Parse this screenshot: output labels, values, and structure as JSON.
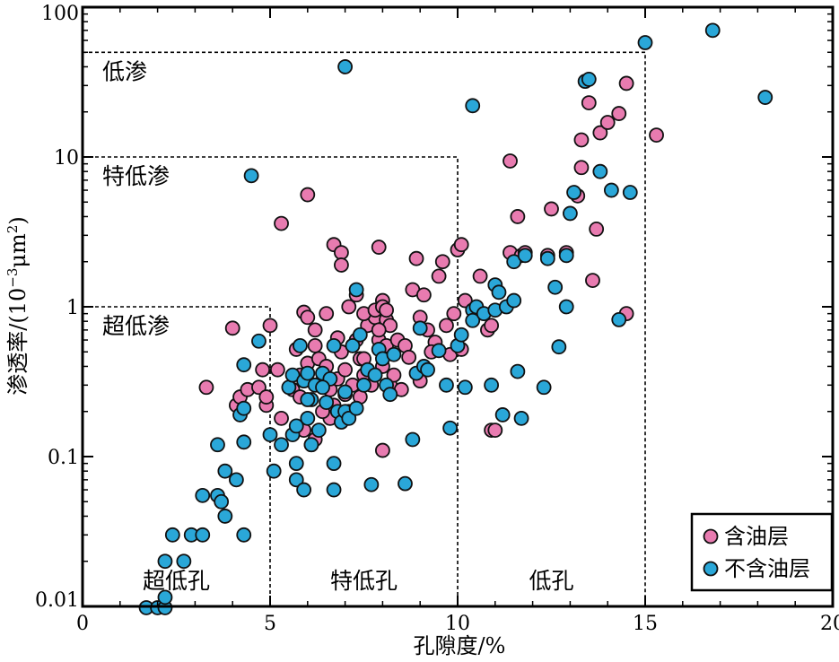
{
  "chart_data": {
    "type": "scatter",
    "title": "",
    "xlabel": "孔隙度/%",
    "ylabel_prefix": "渗透率/(10",
    "ylabel_exp1": "−3",
    "ylabel_mid": "μm",
    "ylabel_exp2": "2",
    "ylabel_suffix": ")",
    "xlim": [
      0,
      20
    ],
    "ylim": [
      0.01,
      100
    ],
    "yscale": "log",
    "xticks": [
      "0",
      "5",
      "10",
      "15",
      "20"
    ],
    "yticks": [
      "0.01",
      "0.1",
      "1",
      "10",
      "100"
    ],
    "grid": false,
    "legend_position": "bottom-right",
    "colors": {
      "oil": "#e87bb0",
      "nonoil": "#2aa7d8",
      "edge": "#111111"
    },
    "regions": {
      "perm": [
        {
          "label": "低渗",
          "x_max": 15,
          "y_max": 50
        },
        {
          "label": "特低渗",
          "x_max": 10,
          "y_max": 10
        },
        {
          "label": "超低渗",
          "x_max": 5,
          "y_max": 1
        }
      ],
      "poro": [
        {
          "label": "超低孔",
          "x_from": 0,
          "x_to": 5
        },
        {
          "label": "特低孔",
          "x_from": 5,
          "x_to": 10
        },
        {
          "label": "低孔",
          "x_from": 10,
          "x_to": 15
        }
      ]
    },
    "series": [
      {
        "name": "含油层",
        "points": [
          [
            3.3,
            0.29
          ],
          [
            4.0,
            0.72
          ],
          [
            4.1,
            0.22
          ],
          [
            4.2,
            0.25
          ],
          [
            4.4,
            0.28
          ],
          [
            4.9,
            0.22
          ],
          [
            4.8,
            0.38
          ],
          [
            4.7,
            0.29
          ],
          [
            5.0,
            0.75
          ],
          [
            4.9,
            0.25
          ],
          [
            5.2,
            0.38
          ],
          [
            5.3,
            0.18
          ],
          [
            5.6,
            0.28
          ],
          [
            5.7,
            0.52
          ],
          [
            5.8,
            0.35
          ],
          [
            5.9,
            0.15
          ],
          [
            6.0,
            0.42
          ],
          [
            6.1,
            0.12
          ],
          [
            6.2,
            0.13
          ],
          [
            6.2,
            0.55
          ],
          [
            6.3,
            0.45
          ],
          [
            6.4,
            0.32
          ],
          [
            6.5,
            0.4
          ],
          [
            6.6,
            0.28
          ],
          [
            6.7,
            0.22
          ],
          [
            6.8,
            0.33
          ],
          [
            6.9,
            0.5
          ],
          [
            7.0,
            0.26
          ],
          [
            7.1,
            0.2
          ],
          [
            7.2,
            0.55
          ],
          [
            7.3,
            0.6
          ],
          [
            7.4,
            0.45
          ],
          [
            7.5,
            0.35
          ],
          [
            7.6,
            0.75
          ],
          [
            7.7,
            0.3
          ],
          [
            7.8,
            0.85
          ],
          [
            7.9,
            0.6
          ],
          [
            8.0,
            0.4
          ],
          [
            8.1,
            0.55
          ],
          [
            8.2,
            0.3
          ],
          [
            5.3,
            3.6
          ],
          [
            5.9,
            0.92
          ],
          [
            6.0,
            5.6
          ],
          [
            6.0,
            0.85
          ],
          [
            6.2,
            0.7
          ],
          [
            6.5,
            0.9
          ],
          [
            6.7,
            2.6
          ],
          [
            6.9,
            2.3
          ],
          [
            6.9,
            1.9
          ],
          [
            7.1,
            1.0
          ],
          [
            7.3,
            1.2
          ],
          [
            7.5,
            0.9
          ],
          [
            7.8,
            0.95
          ],
          [
            7.9,
            2.5
          ],
          [
            8.0,
            1.1
          ],
          [
            8.0,
            1.0
          ],
          [
            8.1,
            0.82
          ],
          [
            8.2,
            0.75
          ],
          [
            8.1,
            0.95
          ],
          [
            8.4,
            0.6
          ],
          [
            8.6,
            0.55
          ],
          [
            8.7,
            0.46
          ],
          [
            8.8,
            1.3
          ],
          [
            8.9,
            2.1
          ],
          [
            9.0,
            0.85
          ],
          [
            9.1,
            1.2
          ],
          [
            9.2,
            0.7
          ],
          [
            9.4,
            0.58
          ],
          [
            9.5,
            1.6
          ],
          [
            9.6,
            2.0
          ],
          [
            9.7,
            0.75
          ],
          [
            9.8,
            0.48
          ],
          [
            9.9,
            0.9
          ],
          [
            10.0,
            2.4
          ],
          [
            10.1,
            2.6
          ],
          [
            10.1,
            0.52
          ],
          [
            10.2,
            1.1
          ],
          [
            10.6,
            1.6
          ],
          [
            10.8,
            0.7
          ],
          [
            10.9,
            0.75
          ],
          [
            10.9,
            0.15
          ],
          [
            11.0,
            0.15
          ],
          [
            11.4,
            9.4
          ],
          [
            11.4,
            2.3
          ],
          [
            11.6,
            4.0
          ],
          [
            11.7,
            2.2
          ],
          [
            11.8,
            2.3
          ],
          [
            12.4,
            2.2
          ],
          [
            12.5,
            4.5
          ],
          [
            12.9,
            2.3
          ],
          [
            13.2,
            5.5
          ],
          [
            13.3,
            8.5
          ],
          [
            13.3,
            13
          ],
          [
            13.5,
            23
          ],
          [
            13.6,
            1.5
          ],
          [
            13.7,
            3.3
          ],
          [
            13.8,
            14.5
          ],
          [
            14.0,
            17
          ],
          [
            14.3,
            19.5
          ],
          [
            14.5,
            0.9
          ],
          [
            14.5,
            31
          ],
          [
            15.3,
            14
          ],
          [
            6.3,
            0.3
          ],
          [
            6.8,
            0.62
          ],
          [
            7.4,
            0.25
          ],
          [
            7.0,
            0.38
          ],
          [
            7.9,
            0.7
          ],
          [
            8.3,
            0.35
          ],
          [
            6.6,
            0.18
          ],
          [
            7.2,
            0.3
          ],
          [
            9.0,
            0.32
          ],
          [
            9.3,
            0.5
          ],
          [
            8.5,
            0.28
          ],
          [
            6.4,
            0.2
          ],
          [
            5.8,
            0.25
          ],
          [
            8.0,
            0.11
          ],
          [
            7.5,
            0.45
          ]
        ]
      },
      {
        "name": "不含油层",
        "points": [
          [
            1.7,
            0.0098
          ],
          [
            2.0,
            0.0098
          ],
          [
            2.2,
            0.0098
          ],
          [
            2.2,
            0.0115
          ],
          [
            2.2,
            0.02
          ],
          [
            2.4,
            0.03
          ],
          [
            2.7,
            0.02
          ],
          [
            2.9,
            0.03
          ],
          [
            3.2,
            0.03
          ],
          [
            3.2,
            0.055
          ],
          [
            3.6,
            0.055
          ],
          [
            3.6,
            0.12
          ],
          [
            3.7,
            0.05
          ],
          [
            3.8,
            0.04
          ],
          [
            3.8,
            0.08
          ],
          [
            4.1,
            0.07
          ],
          [
            4.2,
            0.19
          ],
          [
            4.3,
            0.21
          ],
          [
            4.3,
            0.125
          ],
          [
            4.3,
            0.41
          ],
          [
            4.3,
            0.03
          ],
          [
            4.5,
            7.5
          ],
          [
            4.7,
            0.59
          ],
          [
            5.0,
            0.14
          ],
          [
            5.1,
            0.08
          ],
          [
            5.3,
            0.12
          ],
          [
            5.5,
            0.29
          ],
          [
            5.6,
            0.14
          ],
          [
            5.6,
            0.35
          ],
          [
            5.7,
            0.07
          ],
          [
            5.7,
            0.09
          ],
          [
            5.8,
            0.55
          ],
          [
            5.9,
            0.32
          ],
          [
            5.9,
            0.06
          ],
          [
            6.0,
            0.18
          ],
          [
            6.0,
            0.36
          ],
          [
            6.1,
            0.24
          ],
          [
            6.2,
            0.3
          ],
          [
            6.3,
            0.15
          ],
          [
            6.4,
            0.36
          ],
          [
            6.5,
            0.23
          ],
          [
            6.7,
            0.55
          ],
          [
            6.7,
            0.09
          ],
          [
            6.7,
            0.06
          ],
          [
            6.8,
            0.2
          ],
          [
            6.9,
            0.17
          ],
          [
            7.0,
            0.2
          ],
          [
            7.0,
            0.27
          ],
          [
            7.0,
            40
          ],
          [
            7.2,
            0.55
          ],
          [
            7.3,
            1.3
          ],
          [
            7.4,
            0.65
          ],
          [
            7.5,
            0.3
          ],
          [
            7.6,
            0.38
          ],
          [
            7.7,
            0.065
          ],
          [
            7.8,
            0.35
          ],
          [
            7.9,
            0.52
          ],
          [
            8.0,
            0.45
          ],
          [
            8.1,
            0.3
          ],
          [
            8.2,
            0.26
          ],
          [
            8.3,
            0.48
          ],
          [
            8.6,
            0.066
          ],
          [
            8.8,
            0.13
          ],
          [
            8.9,
            0.36
          ],
          [
            9.0,
            0.72
          ],
          [
            9.1,
            0.4
          ],
          [
            9.2,
            0.38
          ],
          [
            9.5,
            0.51
          ],
          [
            9.7,
            0.3
          ],
          [
            9.8,
            0.155
          ],
          [
            10.0,
            0.55
          ],
          [
            10.1,
            0.65
          ],
          [
            10.2,
            0.29
          ],
          [
            10.4,
            0.95
          ],
          [
            10.4,
            0.81
          ],
          [
            10.4,
            22
          ],
          [
            10.5,
            1.0
          ],
          [
            10.7,
            0.9
          ],
          [
            10.9,
            0.3
          ],
          [
            11.0,
            1.4
          ],
          [
            11.0,
            0.95
          ],
          [
            11.1,
            1.25
          ],
          [
            11.2,
            0.19
          ],
          [
            11.3,
            1.0
          ],
          [
            11.5,
            1.1
          ],
          [
            11.5,
            2.0
          ],
          [
            11.6,
            0.37
          ],
          [
            11.7,
            0.18
          ],
          [
            11.8,
            2.2
          ],
          [
            12.3,
            0.29
          ],
          [
            12.4,
            2.1
          ],
          [
            12.6,
            1.35
          ],
          [
            12.7,
            0.54
          ],
          [
            12.9,
            2.2
          ],
          [
            12.9,
            1.0
          ],
          [
            13.0,
            4.2
          ],
          [
            13.1,
            5.8
          ],
          [
            13.4,
            32
          ],
          [
            13.5,
            33
          ],
          [
            13.8,
            8.0
          ],
          [
            14.1,
            6.0
          ],
          [
            14.3,
            0.82
          ],
          [
            14.6,
            5.8
          ],
          [
            15.0,
            58
          ],
          [
            16.8,
            70
          ],
          [
            18.2,
            25
          ],
          [
            6.0,
            0.24
          ],
          [
            6.6,
            0.33
          ],
          [
            7.1,
            0.18
          ],
          [
            6.1,
            0.12
          ],
          [
            5.7,
            0.16
          ],
          [
            6.4,
            0.29
          ],
          [
            7.3,
            0.21
          ]
        ]
      }
    ]
  }
}
